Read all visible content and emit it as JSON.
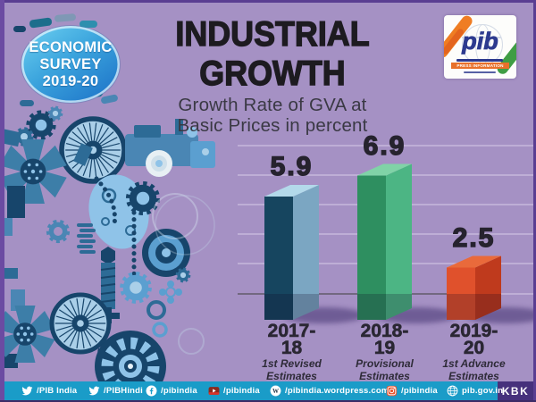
{
  "page": {
    "background": "#a591c4",
    "frame_color": "#5a3e92"
  },
  "badge": {
    "line1": "ECONOMIC",
    "line2": "SURVEY",
    "line3": "2019-20",
    "gradient_top": "#6fd2f2",
    "gradient_bottom": "#1a6ec6"
  },
  "header": {
    "title_line1": "INDUSTRIAL",
    "title_line2": "GROWTH",
    "subtitle_line1": "Growth Rate of GVA at",
    "subtitle_line2": "Basic Prices in percent"
  },
  "logo": {
    "wordmark": "pib",
    "caption": "PRESS INFORMATION BUREAU",
    "saffron": "#ef7d23",
    "green": "#3f9d44",
    "blue": "#2d3a8f"
  },
  "chart_data": {
    "type": "bar",
    "title": "Growth Rate of GVA at Basic Prices in percent",
    "xlabel": "",
    "ylabel": "percent",
    "ylim": [
      0,
      7.5
    ],
    "grid": true,
    "categories": [
      "2017-18",
      "2018-19",
      "2019-20"
    ],
    "values": [
      5.9,
      6.9,
      2.5
    ],
    "notes": [
      "1st Revised Estimates",
      "Provisional Estimates",
      "1st Advance Estimates"
    ],
    "bar_colors": [
      {
        "front": "#16455f",
        "side": "#7ba6c2",
        "top": "#b3d9ea"
      },
      {
        "front": "#2e8f60",
        "side": "#4cb584",
        "top": "#80d3a7"
      },
      {
        "front": "#e0512c",
        "side": "#bf3a1d",
        "top": "#e96a3b"
      }
    ],
    "gridline_color": "#cbbcdf",
    "axis_color": "#4a4452"
  },
  "footer": {
    "background": "#1a9cc8",
    "items": [
      {
        "icon": "twitter-icon",
        "label": "/PIB India"
      },
      {
        "icon": "twitter-icon",
        "label": "/PIBHindi"
      },
      {
        "icon": "facebook-icon",
        "label": "/pibindia"
      },
      {
        "icon": "youtube-icon",
        "label": "/pibindia"
      },
      {
        "icon": "wordpress-icon",
        "label": "/pibindia.wordpress.com"
      },
      {
        "icon": "instagram-icon",
        "label": "/pibindia"
      },
      {
        "icon": "globe-icon",
        "label": "pib.gov.in"
      }
    ],
    "credit": "KBK"
  }
}
